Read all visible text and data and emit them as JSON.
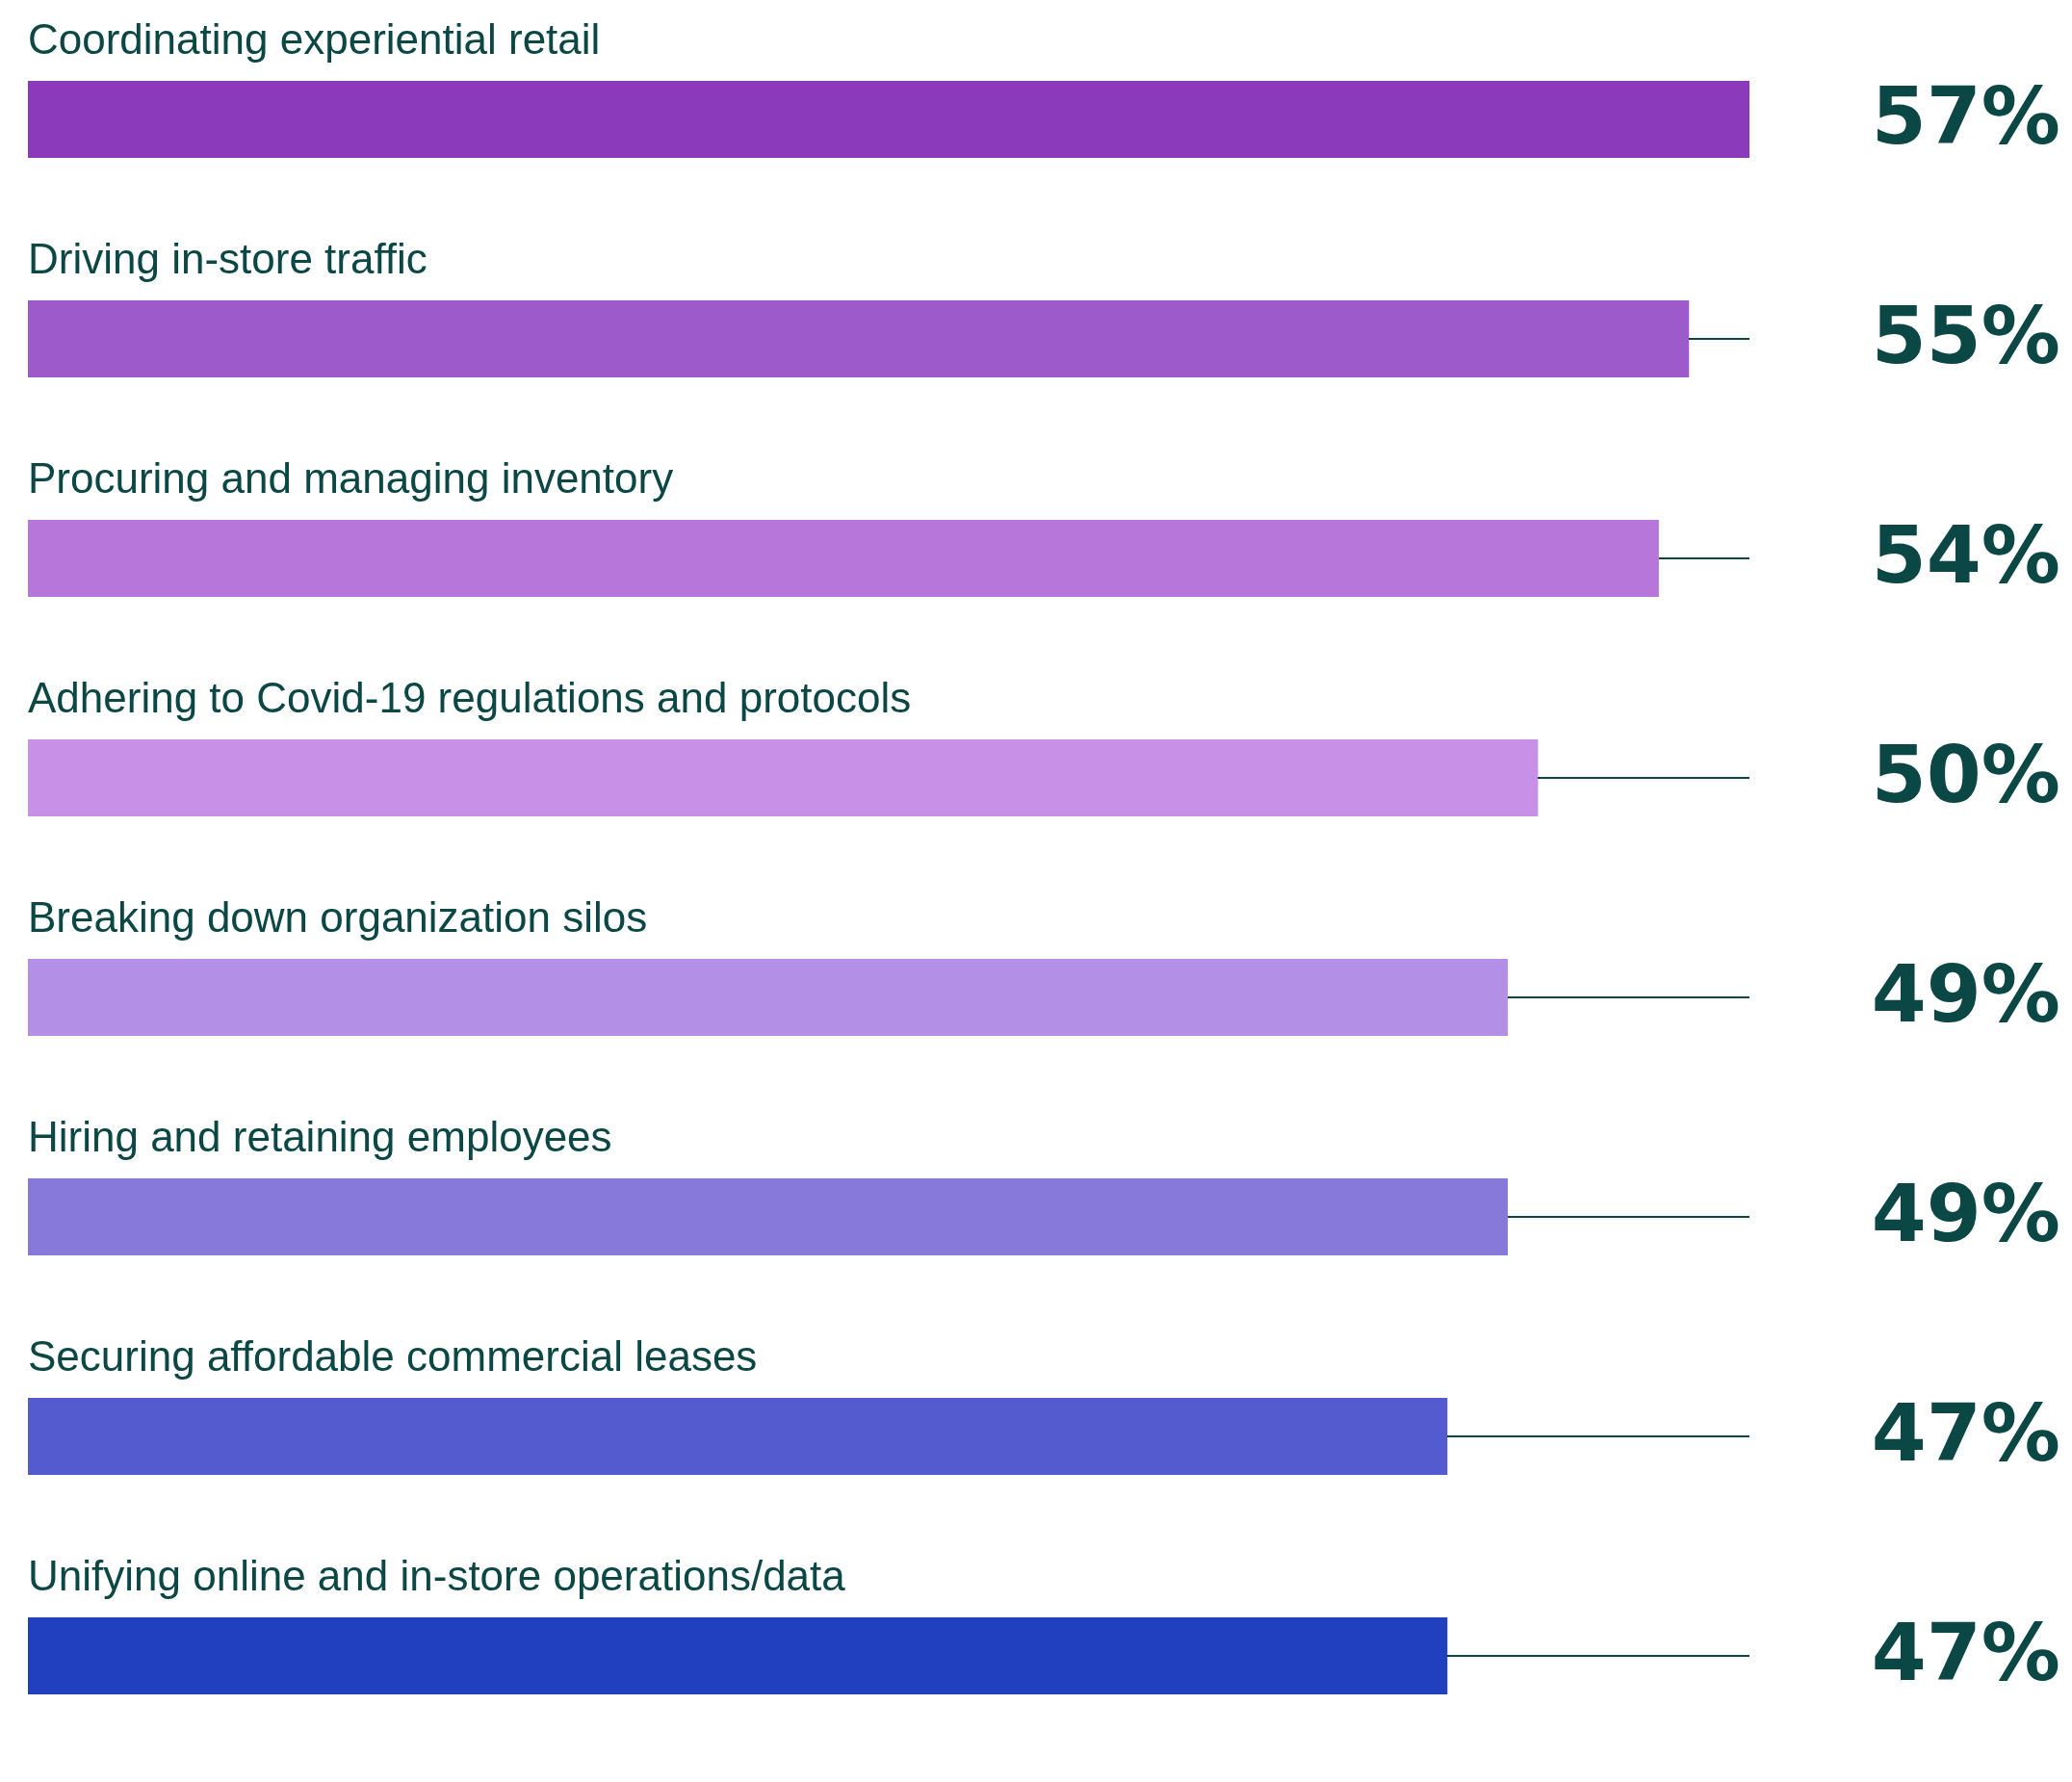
{
  "chart_data": {
    "type": "bar",
    "orientation": "horizontal",
    "categories": [
      "Coordinating experiential retail",
      "Driving in-store traffic",
      "Procuring and managing inventory",
      "Adhering to Covid-19 regulations and protocols",
      "Breaking down organization silos",
      "Hiring and retaining employees",
      "Securing affordable commercial leases",
      "Unifying online and in-store operations/data"
    ],
    "values": [
      57,
      55,
      54,
      50,
      49,
      49,
      47,
      47
    ],
    "value_labels": [
      "57%",
      "55%",
      "54%",
      "50%",
      "49%",
      "49%",
      "47%",
      "47%"
    ],
    "colors": [
      "#8a3aba",
      "#9d5acb",
      "#b676da",
      "#c990e8",
      "#b48fe6",
      "#8679da",
      "#535bcf",
      "#2140c0"
    ],
    "legend": false
  }
}
